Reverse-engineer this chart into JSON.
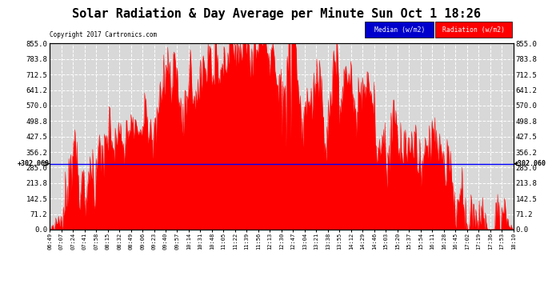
{
  "title": "Solar Radiation & Day Average per Minute Sun Oct 1 18:26",
  "copyright": "Copyright 2017 Cartronics.com",
  "median_value": 302.06,
  "ymax": 855.0,
  "ymin": 0.0,
  "yticks_left": [
    0.0,
    71.2,
    142.5,
    213.8,
    285.0,
    356.2,
    427.5,
    498.8,
    570.0,
    641.2,
    712.5,
    783.8,
    855.0
  ],
  "ytick_labels": [
    "0.0",
    "71.2",
    "142.5",
    "213.8",
    "285.0",
    "356.2",
    "427.5",
    "498.8",
    "570.0",
    "641.2",
    "712.5",
    "783.8",
    "855.0"
  ],
  "background_color": "#ffffff",
  "plot_bg_color": "#d8d8d8",
  "radiation_color": "#ff0000",
  "median_color": "#0000ff",
  "grid_color": "#ffffff",
  "legend_median_color": "#0000cc",
  "legend_radiation_color": "#ff0000",
  "xtick_labels": [
    "06:49",
    "07:07",
    "07:24",
    "07:41",
    "07:58",
    "08:15",
    "08:32",
    "08:49",
    "09:06",
    "09:23",
    "09:40",
    "09:57",
    "10:14",
    "10:31",
    "10:48",
    "11:05",
    "11:22",
    "11:39",
    "11:56",
    "12:13",
    "12:30",
    "12:47",
    "13:04",
    "13:21",
    "13:38",
    "13:55",
    "14:12",
    "14:29",
    "14:46",
    "15:03",
    "15:20",
    "15:37",
    "15:54",
    "16:11",
    "16:28",
    "16:45",
    "17:02",
    "17:19",
    "17:36",
    "17:53",
    "18:10"
  ],
  "num_points": 680
}
